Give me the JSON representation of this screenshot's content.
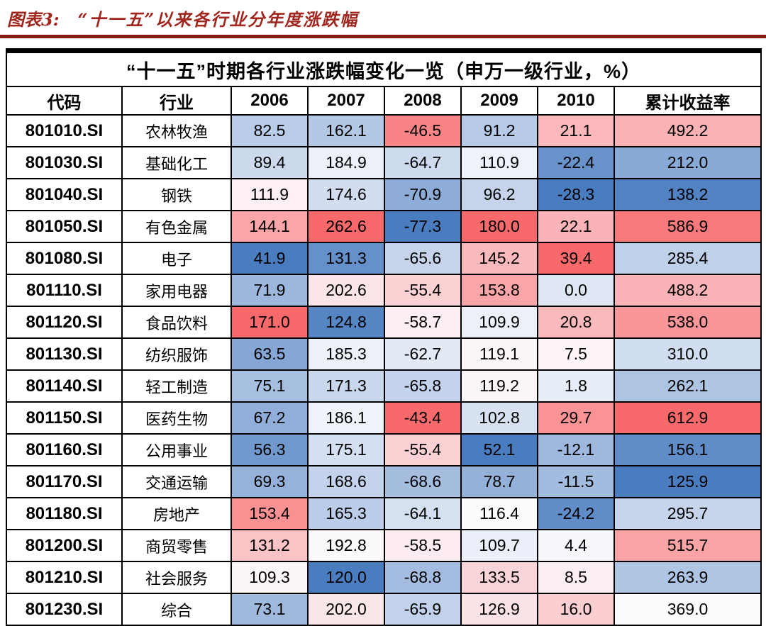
{
  "header": {
    "figure_label": "图表3:",
    "figure_title": "“十一五”以来各行业分年度涨跌幅"
  },
  "colors": {
    "title_red": "#a0261e",
    "rule_red": "#8b1a14",
    "scale_low": "#4a7cc0",
    "scale_mid": "#fcfcff",
    "scale_high": "#f8696b"
  },
  "chart_data": {
    "type": "heatmap",
    "table_title": "“十一五”时期各行业涨跌幅变化一览（申万一级行业，%）",
    "columns": [
      "代码",
      "行业",
      "2006",
      "2007",
      "2008",
      "2009",
      "2010",
      "累计收益率"
    ],
    "legend_note": "per-column diverging color scale: blue=min, white=mid, red=max",
    "rows": [
      {
        "code": "801010.SI",
        "industry": "农林牧渔",
        "values": [
          82.5,
          162.1,
          -46.5,
          91.2,
          21.1,
          492.2
        ]
      },
      {
        "code": "801030.SI",
        "industry": "基础化工",
        "values": [
          89.4,
          184.9,
          -64.7,
          110.9,
          -22.4,
          212.0
        ]
      },
      {
        "code": "801040.SI",
        "industry": "钢铁",
        "values": [
          111.9,
          174.6,
          -70.9,
          96.2,
          -28.3,
          138.2
        ]
      },
      {
        "code": "801050.SI",
        "industry": "有色金属",
        "values": [
          144.1,
          262.6,
          -77.3,
          180.0,
          22.1,
          586.9
        ]
      },
      {
        "code": "801080.SI",
        "industry": "电子",
        "values": [
          41.9,
          131.3,
          -65.6,
          145.2,
          39.4,
          285.4
        ]
      },
      {
        "code": "801110.SI",
        "industry": "家用电器",
        "values": [
          71.9,
          202.6,
          -55.4,
          153.8,
          0.0,
          488.2
        ]
      },
      {
        "code": "801120.SI",
        "industry": "食品饮料",
        "values": [
          171.0,
          124.8,
          -58.7,
          109.9,
          20.8,
          538.0
        ]
      },
      {
        "code": "801130.SI",
        "industry": "纺织服饰",
        "values": [
          63.5,
          185.3,
          -62.7,
          119.1,
          7.5,
          310.0
        ]
      },
      {
        "code": "801140.SI",
        "industry": "轻工制造",
        "values": [
          75.1,
          171.3,
          -65.8,
          119.2,
          1.8,
          262.1
        ]
      },
      {
        "code": "801150.SI",
        "industry": "医药生物",
        "values": [
          67.2,
          186.1,
          -43.4,
          102.8,
          29.7,
          612.9
        ]
      },
      {
        "code": "801160.SI",
        "industry": "公用事业",
        "values": [
          56.3,
          175.1,
          -55.4,
          52.1,
          -12.1,
          156.1
        ]
      },
      {
        "code": "801170.SI",
        "industry": "交通运输",
        "values": [
          69.3,
          168.6,
          -68.6,
          78.7,
          -11.5,
          125.9
        ]
      },
      {
        "code": "801180.SI",
        "industry": "房地产",
        "values": [
          153.4,
          165.3,
          -64.1,
          116.4,
          -24.2,
          295.7
        ]
      },
      {
        "code": "801200.SI",
        "industry": "商贸零售",
        "values": [
          131.2,
          192.8,
          -58.5,
          109.7,
          4.4,
          515.7
        ]
      },
      {
        "code": "801210.SI",
        "industry": "社会服务",
        "values": [
          109.3,
          120.0,
          -68.8,
          133.5,
          8.5,
          263.9
        ]
      },
      {
        "code": "801230.SI",
        "industry": "综合",
        "values": [
          73.1,
          202.0,
          -65.9,
          126.9,
          16.0,
          369.0
        ]
      }
    ]
  }
}
